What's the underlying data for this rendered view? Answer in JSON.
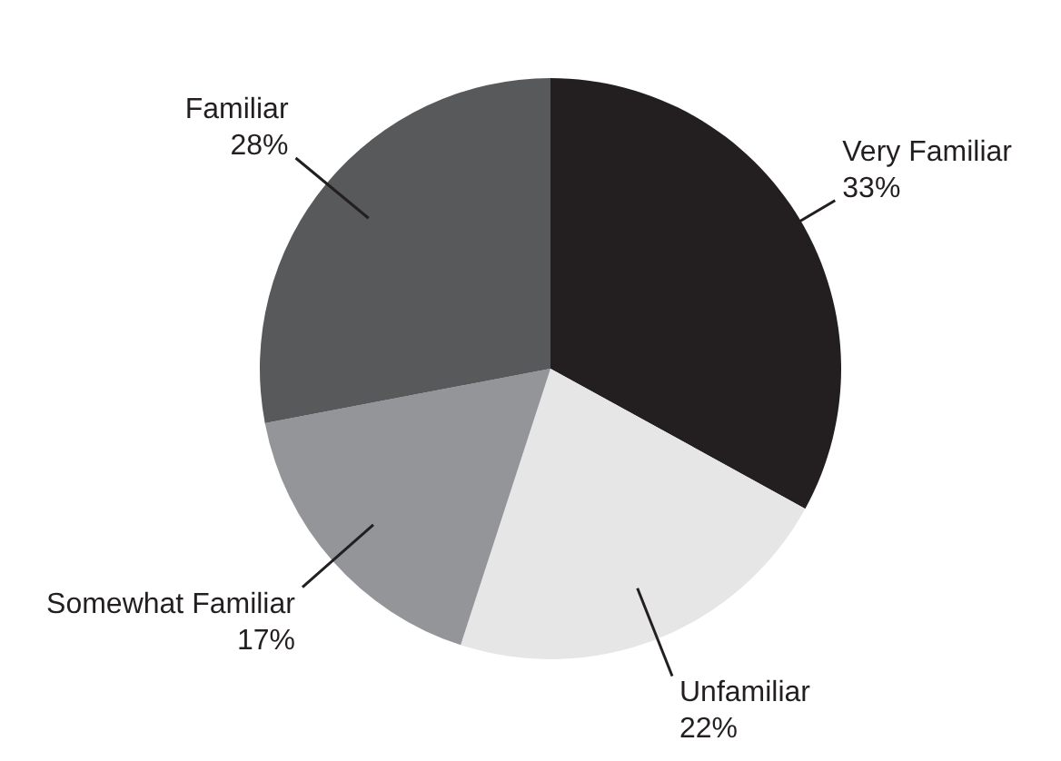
{
  "chart_data": {
    "type": "pie",
    "categories": [
      "Very Familiar",
      "Unfamiliar",
      "Somewhat Familiar",
      "Familiar"
    ],
    "values": [
      33,
      22,
      17,
      28
    ],
    "value_labels": [
      "33%",
      "22%",
      "17%",
      "28%"
    ],
    "colors": [
      "#231f20",
      "#e6e6e6",
      "#939598",
      "#58595b"
    ],
    "legend": false
  }
}
